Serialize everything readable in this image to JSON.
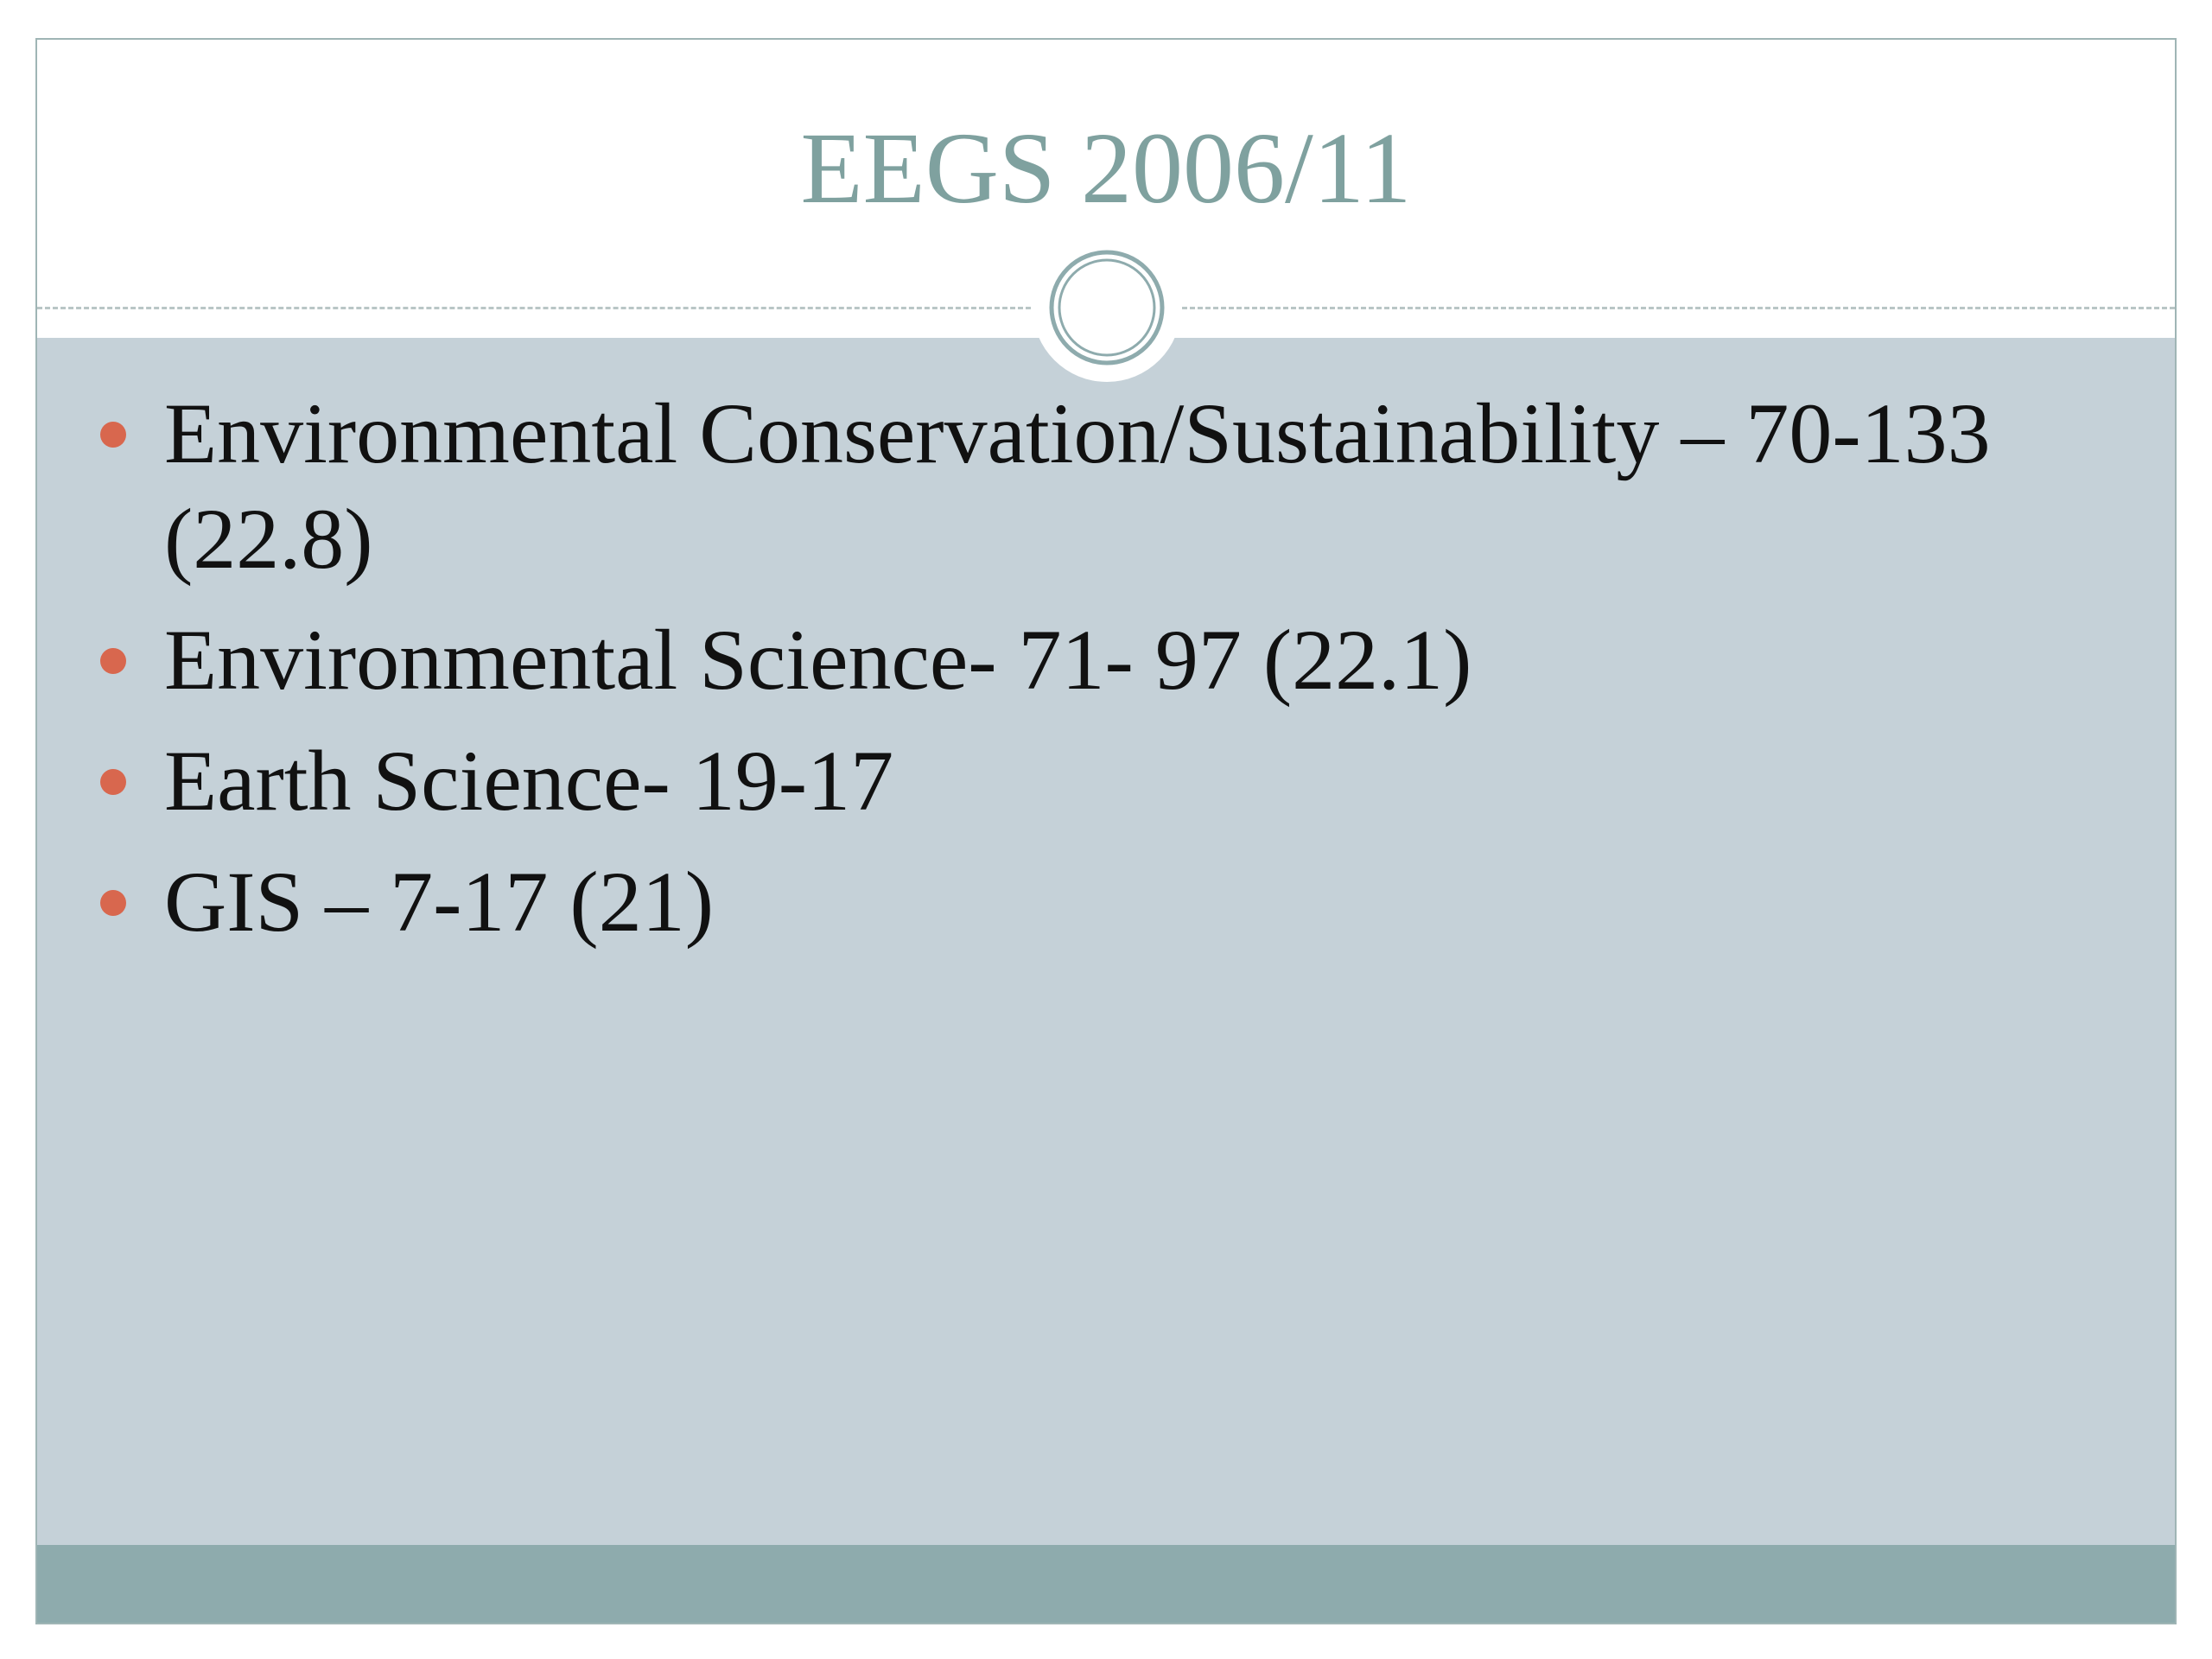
{
  "slide": {
    "title": "EEGS 2006/11",
    "bullets": [
      "Environmental Conservation/Sustainability – 70-133  (22.8)",
      "Environmental Science- 71- 97  (22.1)",
      "Earth Science- 19-17",
      "GIS – 7-17 (21)"
    ]
  }
}
